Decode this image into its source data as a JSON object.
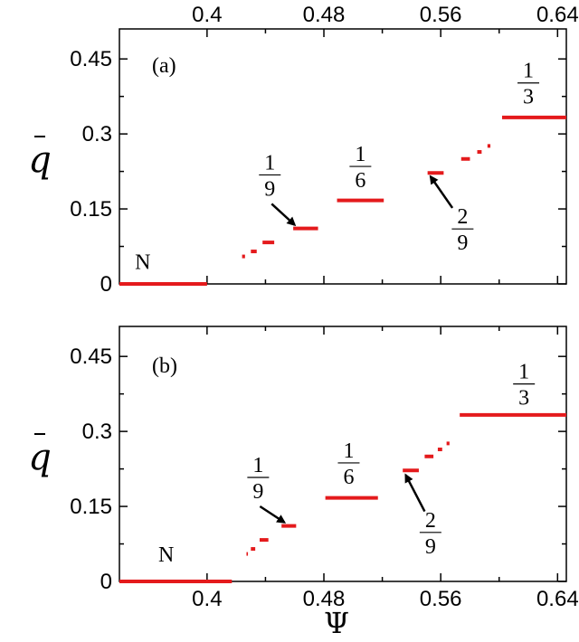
{
  "chart_data": [
    {
      "type": "line",
      "panel_label": "(a)",
      "xlim": [
        0.34,
        0.646
      ],
      "ylim": [
        0,
        0.51
      ],
      "x_ticks": [
        0.4,
        0.48,
        0.56,
        0.64
      ],
      "x_tick_labels": [
        "0.4",
        "0.48",
        "0.56",
        "0.64"
      ],
      "x_tick_labels_position": "top",
      "y_ticks": [
        0,
        0.15,
        0.3,
        0.45
      ],
      "y_tick_labels": [
        "0",
        "0.15",
        "0.3",
        "0.45"
      ],
      "ylabel": "q",
      "xlabel": "",
      "grid": false,
      "color": "#e41a1c",
      "steps": [
        {
          "x0": 0.34,
          "x1": 0.4,
          "y": 0.0
        },
        {
          "x0": 0.424,
          "x1": 0.426,
          "y": 0.055
        },
        {
          "x0": 0.43,
          "x1": 0.434,
          "y": 0.065
        },
        {
          "x0": 0.438,
          "x1": 0.446,
          "y": 0.083
        },
        {
          "x0": 0.459,
          "x1": 0.476,
          "y": 0.111
        },
        {
          "x0": 0.489,
          "x1": 0.521,
          "y": 0.167
        },
        {
          "x0": 0.551,
          "x1": 0.562,
          "y": 0.222
        },
        {
          "x0": 0.574,
          "x1": 0.58,
          "y": 0.25
        },
        {
          "x0": 0.585,
          "x1": 0.588,
          "y": 0.264
        },
        {
          "x0": 0.592,
          "x1": 0.594,
          "y": 0.276
        },
        {
          "x0": 0.602,
          "x1": 0.646,
          "y": 0.333
        }
      ],
      "annotations": [
        {
          "type": "text",
          "text": "N",
          "x": 0.356,
          "y": 0.03
        },
        {
          "type": "fraction",
          "numerator": "1",
          "denominator": "9",
          "x": 0.443,
          "y": 0.218,
          "arrow_to": [
            0.46,
            0.118
          ]
        },
        {
          "type": "fraction",
          "numerator": "1",
          "denominator": "6",
          "x": 0.505,
          "y": 0.235
        },
        {
          "type": "fraction",
          "numerator": "2",
          "denominator": "9",
          "x": 0.575,
          "y": 0.11,
          "arrow_from": [
            0.568,
            0.152
          ],
          "arrow_to": [
            0.553,
            0.215
          ]
        },
        {
          "type": "fraction",
          "numerator": "1",
          "denominator": "3",
          "x": 0.62,
          "y": 0.402
        }
      ]
    },
    {
      "type": "line",
      "panel_label": "(b)",
      "xlim": [
        0.34,
        0.646
      ],
      "ylim": [
        0,
        0.51
      ],
      "x_ticks": [
        0.4,
        0.48,
        0.56,
        0.64
      ],
      "x_tick_labels": [
        "0.4",
        "0.48",
        "0.56",
        "0.64"
      ],
      "x_tick_labels_position": "bottom",
      "y_ticks": [
        0,
        0.15,
        0.3,
        0.45
      ],
      "y_tick_labels": [
        "0",
        "0.15",
        "0.3",
        "0.45"
      ],
      "ylabel": "q",
      "xlabel": "Ψ",
      "grid": false,
      "color": "#e41a1c",
      "steps": [
        {
          "x0": 0.34,
          "x1": 0.417,
          "y": 0.0
        },
        {
          "x0": 0.427,
          "x1": 0.428,
          "y": 0.055
        },
        {
          "x0": 0.43,
          "x1": 0.433,
          "y": 0.065
        },
        {
          "x0": 0.436,
          "x1": 0.442,
          "y": 0.083
        },
        {
          "x0": 0.451,
          "x1": 0.461,
          "y": 0.111
        },
        {
          "x0": 0.481,
          "x1": 0.517,
          "y": 0.167
        },
        {
          "x0": 0.534,
          "x1": 0.545,
          "y": 0.222
        },
        {
          "x0": 0.549,
          "x1": 0.555,
          "y": 0.25
        },
        {
          "x0": 0.558,
          "x1": 0.561,
          "y": 0.264
        },
        {
          "x0": 0.564,
          "x1": 0.566,
          "y": 0.276
        },
        {
          "x0": 0.573,
          "x1": 0.646,
          "y": 0.333
        }
      ],
      "annotations": [
        {
          "type": "text",
          "text": "N",
          "x": 0.372,
          "y": 0.04
        },
        {
          "type": "fraction",
          "numerator": "1",
          "denominator": "9",
          "x": 0.435,
          "y": 0.208,
          "arrow_to": [
            0.453,
            0.118
          ]
        },
        {
          "type": "fraction",
          "numerator": "1",
          "denominator": "6",
          "x": 0.497,
          "y": 0.237
        },
        {
          "type": "fraction",
          "numerator": "2",
          "denominator": "9",
          "x": 0.553,
          "y": 0.098,
          "arrow_from": [
            0.549,
            0.14
          ],
          "arrow_to": [
            0.536,
            0.213
          ]
        },
        {
          "type": "fraction",
          "numerator": "1",
          "denominator": "3",
          "x": 0.617,
          "y": 0.395
        }
      ]
    }
  ]
}
